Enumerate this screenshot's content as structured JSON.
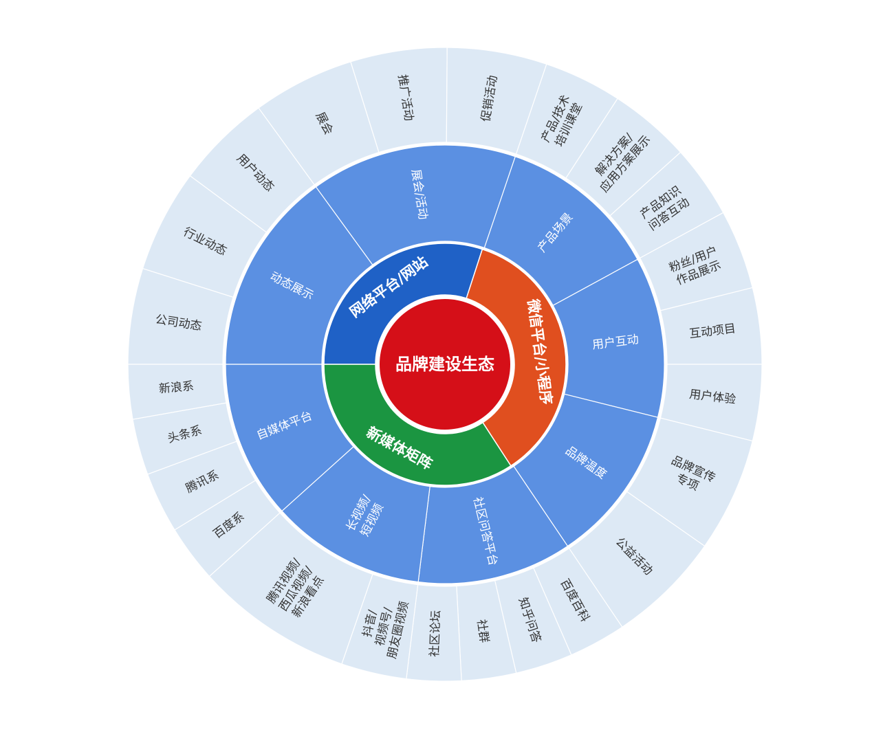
{
  "center": {
    "label": "品牌建设生态",
    "color": "#d50f18"
  },
  "ring_platforms": [
    {
      "label": "网络平台/网站",
      "color": "#1f61c6"
    },
    {
      "label": "微信平台/小程序",
      "color": "#e04f1f"
    },
    {
      "label": "新媒体矩阵",
      "color": "#1b9541"
    }
  ],
  "ring_categories_color": "#5b90e2",
  "ring_categories": [
    {
      "lines": [
        "动态展示"
      ]
    },
    {
      "lines": [
        "展会/活动"
      ]
    },
    {
      "lines": [
        "产品场景"
      ]
    },
    {
      "lines": [
        "用户互动"
      ]
    },
    {
      "lines": [
        "品牌温度"
      ]
    },
    {
      "lines": [
        "社区问答平台"
      ]
    },
    {
      "lines": [
        "长视频/",
        "短视频"
      ]
    },
    {
      "lines": [
        "自媒体平台"
      ]
    }
  ],
  "ring_channels_color": "#dde9f5",
  "ring_channels": [
    {
      "lines": [
        "公司动态"
      ]
    },
    {
      "lines": [
        "行业动态"
      ]
    },
    {
      "lines": [
        "用户动态"
      ]
    },
    {
      "lines": [
        "展会"
      ]
    },
    {
      "lines": [
        "推广活动"
      ]
    },
    {
      "lines": [
        "促销活动"
      ]
    },
    {
      "lines": [
        "产品/技术",
        "培训课堂"
      ]
    },
    {
      "lines": [
        "解决方案/",
        "应用方案展示"
      ]
    },
    {
      "lines": [
        "产品知识",
        "问答互动"
      ]
    },
    {
      "lines": [
        "粉丝/用户",
        "作品展示"
      ]
    },
    {
      "lines": [
        "互动项目"
      ]
    },
    {
      "lines": [
        "用户体验"
      ]
    },
    {
      "lines": [
        "品牌宣传",
        "专项"
      ]
    },
    {
      "lines": [
        "公益活动"
      ]
    },
    {
      "lines": [
        "百度百科"
      ]
    },
    {
      "lines": [
        "知乎问答"
      ]
    },
    {
      "lines": [
        "社群"
      ]
    },
    {
      "lines": [
        "社区论坛"
      ]
    },
    {
      "lines": [
        "抖音/",
        "视频号/",
        "朋友圈视频"
      ]
    },
    {
      "lines": [
        "腾讯视频/",
        "西瓜视频/",
        "新浪看点"
      ]
    },
    {
      "lines": [
        "百度系"
      ]
    },
    {
      "lines": [
        "腾讯系"
      ]
    },
    {
      "lines": [
        "头条系"
      ]
    },
    {
      "lines": [
        "新浪系"
      ]
    }
  ]
}
